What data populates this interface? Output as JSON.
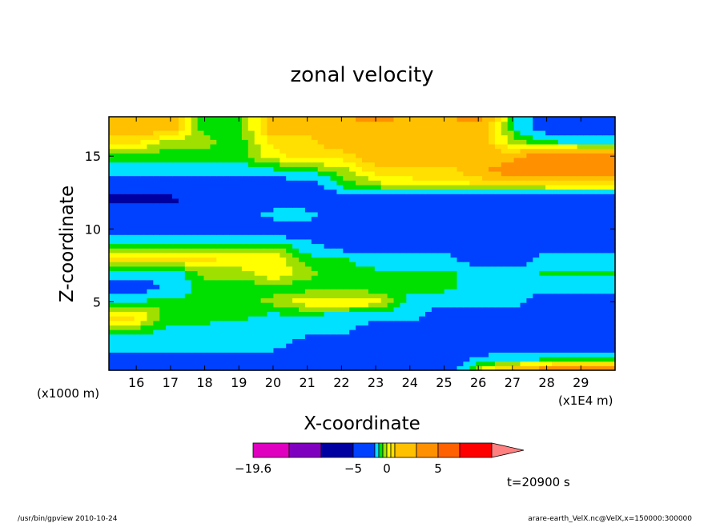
{
  "chart_data": {
    "type": "heatmap",
    "title": "zonal velocity",
    "xlabel": "X-coordinate",
    "ylabel": "Z-coordinate",
    "x_unit_left": "(x1000 m)",
    "x_unit_right": "(x1E4 m)",
    "xlim": [
      15.2,
      30.0
    ],
    "ylim": [
      0.3,
      17.7
    ],
    "x_ticks": [
      16,
      17,
      18,
      19,
      20,
      21,
      22,
      23,
      24,
      25,
      26,
      27,
      28,
      29
    ],
    "y_ticks": [
      5,
      10,
      15
    ],
    "time_label": "t=20900 s",
    "colorbar": {
      "labels": [
        {
          "value": -19.6,
          "text": "−19.6"
        },
        {
          "value": -5,
          "text": "−5"
        },
        {
          "value": 0,
          "text": "0"
        },
        {
          "value": 5,
          "text": "5"
        }
      ],
      "bins": [
        {
          "from": -19.6,
          "to": -15,
          "color": "#e000c0"
        },
        {
          "from": -15,
          "to": -10,
          "color": "#8000c0"
        },
        {
          "from": -10,
          "to": -5,
          "color": "#0000a0"
        },
        {
          "from": -5,
          "to": -2,
          "color": "#0040ff"
        },
        {
          "from": -2,
          "to": -1,
          "color": "#00e0ff"
        },
        {
          "from": -1,
          "to": -0.5,
          "color": "#00e000"
        },
        {
          "from": -0.5,
          "to": 0,
          "color": "#a0e000"
        },
        {
          "from": 0,
          "to": 0.5,
          "color": "#ffff00"
        },
        {
          "from": 0.5,
          "to": 1,
          "color": "#ffe000"
        },
        {
          "from": 1,
          "to": 2,
          "color": "#ffc000"
        },
        {
          "from": 2,
          "to": 5,
          "color": "#ff9000"
        },
        {
          "from": 5,
          "to": 10,
          "color": "#ff6000"
        },
        {
          "from": 10,
          "to": 15,
          "color": "#ff0000"
        }
      ],
      "extend_color": "#ff8080"
    },
    "field": {
      "x": [
        15.2,
        16,
        17,
        18,
        19,
        20,
        21,
        22,
        23,
        24,
        25,
        26,
        27,
        28,
        29,
        30
      ],
      "z": [
        0.3,
        1,
        2,
        3,
        4,
        5,
        6,
        7,
        8,
        9,
        10,
        11,
        12,
        13,
        14,
        15,
        16,
        17,
        17.7
      ],
      "values": [
        [
          -3,
          -3,
          -3,
          -3,
          -3,
          -3,
          -3,
          -3,
          -3,
          -3,
          -3,
          0.3,
          1.5,
          3,
          3,
          3
        ],
        [
          -3,
          -3,
          -3,
          -3,
          -3,
          -3,
          -3,
          -3,
          -3,
          -3,
          -3,
          -1.5,
          -1,
          -0.8,
          -0.6,
          -0.6
        ],
        [
          -1.5,
          -1.5,
          -1.5,
          -1.2,
          -1.5,
          -1.5,
          -3,
          -3,
          -3,
          -3,
          -3,
          -3,
          -3,
          -3,
          -3,
          -3
        ],
        [
          -0.8,
          -0.8,
          -1.2,
          -1.2,
          -1.5,
          -1.5,
          -1.5,
          -1.5,
          -3,
          -3,
          -3,
          -3,
          -3,
          -3,
          -3,
          -3
        ],
        [
          0.7,
          0.7,
          -0.8,
          -0.8,
          -0.8,
          -1.2,
          -1.2,
          -1.5,
          -1.5,
          -1.5,
          -3,
          -3,
          -3,
          -3,
          -3,
          -3
        ],
        [
          -0.8,
          -0.8,
          -0.8,
          -0.8,
          -0.8,
          -0.3,
          0.4,
          0.6,
          0.3,
          -1.2,
          -1.5,
          -1.5,
          -1.5,
          -3,
          -3,
          -3
        ],
        [
          -3,
          -3,
          -1.5,
          -0.8,
          -0.8,
          -0.8,
          -0.8,
          -0.8,
          -0.8,
          -0.8,
          -0.8,
          -1.5,
          -1.5,
          -1.5,
          -1.5,
          -1.5
        ],
        [
          -1.5,
          -1.5,
          -1.5,
          -0.3,
          -0.3,
          0.5,
          -0.3,
          -0.8,
          -0.8,
          -0.8,
          -0.8,
          -1.5,
          -1.5,
          -0.8,
          -0.8,
          -0.8
        ],
        [
          0.7,
          0.7,
          0.7,
          0.7,
          0.4,
          0.5,
          -0.8,
          -0.8,
          -1.5,
          -1.5,
          -1.5,
          -3,
          -3,
          -1.5,
          -1.5,
          -1.5
        ],
        [
          -0.8,
          -0.8,
          -0.8,
          -0.8,
          -0.8,
          -0.8,
          -1.5,
          -3,
          -3,
          -3,
          -3,
          -3,
          -3,
          -3,
          -3,
          -3
        ],
        [
          -3,
          -3,
          -3,
          -3,
          -3,
          -3,
          -3,
          -3,
          -3,
          -3,
          -3,
          -3,
          -3,
          -3,
          -3,
          -3
        ],
        [
          -3,
          -3,
          -3,
          -3,
          -3,
          -1.5,
          -1.5,
          -3,
          -3,
          -3,
          -3,
          -3,
          -3,
          -3,
          -3,
          -3
        ],
        [
          -6,
          -6,
          -6,
          -3,
          -3,
          -3,
          -3,
          -3,
          -3,
          -3,
          -3,
          -3,
          -3,
          -3,
          -3,
          -3
        ],
        [
          -3,
          -3,
          -3,
          -3,
          -3,
          -3,
          -3,
          -0.8,
          -0.3,
          0.3,
          0.3,
          0.3,
          0.3,
          0.4,
          0.4,
          0.4
        ],
        [
          -1.5,
          -1.5,
          -1.5,
          -1.5,
          -1.5,
          -1.2,
          -0.8,
          -0.3,
          0.7,
          0.7,
          0.7,
          1.5,
          3,
          3,
          3,
          3
        ],
        [
          -0.8,
          -0.8,
          -0.8,
          -0.8,
          -0.8,
          0.3,
          0.7,
          0.7,
          1.5,
          1.5,
          1.5,
          1.5,
          1.5,
          3,
          3,
          3
        ],
        [
          0.7,
          0.7,
          -0.3,
          -0.3,
          -0.8,
          0.7,
          0.7,
          1.5,
          1.5,
          1.5,
          1.5,
          1.5,
          -0.3,
          -0.8,
          -1.5,
          -1.5
        ],
        [
          1.5,
          1.5,
          1.5,
          -0.8,
          -0.8,
          1.5,
          1.5,
          1.5,
          1.5,
          1.5,
          1.5,
          1.5,
          -0.8,
          -3,
          -3,
          -3
        ],
        [
          1.5,
          1.5,
          1.5,
          -0.8,
          -0.8,
          1.5,
          1.5,
          1.5,
          3,
          1.5,
          1.5,
          3,
          -0.8,
          -3,
          -3,
          -3
        ]
      ]
    }
  },
  "footer": {
    "left": "/usr/bin/gpview   2010-10-24",
    "right": "arare-earth_VelX.nc@VelX,x=150000:300000"
  }
}
